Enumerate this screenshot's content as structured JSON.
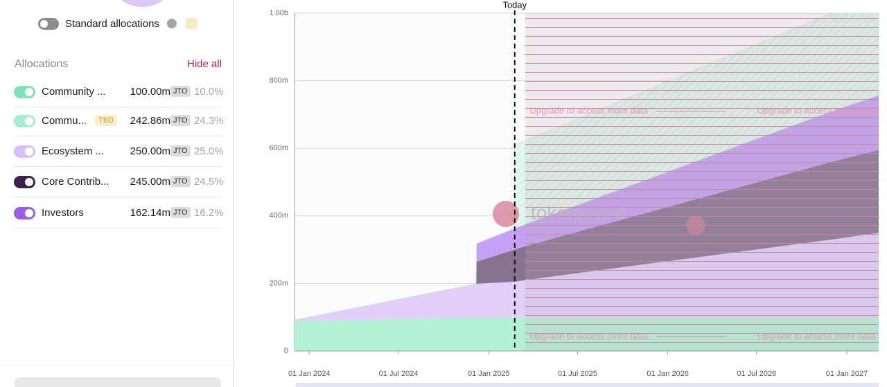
{
  "sidebar": {
    "toggle_label": "Standard allocations",
    "section_title": "Allocations",
    "hide_all": "Hide all",
    "rows": [
      {
        "label": "Community ...",
        "amount": "100.00m",
        "unit": "JTO",
        "share": "10.0%",
        "color": "#7ee2b8"
      },
      {
        "label": "Commu...",
        "tag": "TBD",
        "amount": "242.86m",
        "unit": "JTO",
        "share": "24.3%",
        "color": "#a8ecd0"
      },
      {
        "label": "Ecosystem ...",
        "amount": "250.00m",
        "unit": "JTO",
        "share": "25.0%",
        "color": "#d9bff7"
      },
      {
        "label": "Core Contrib...",
        "amount": "245.00m",
        "unit": "JTO",
        "share": "24.5%",
        "color": "#3b1f4f"
      },
      {
        "label": "Investors",
        "amount": "162.14m",
        "unit": "JTO",
        "share": "16.2%",
        "color": "#9b5de5"
      }
    ]
  },
  "chart_data": {
    "type": "stacked-area",
    "x": [
      "2023-12-02",
      "2024-12-06",
      "2024-12-07",
      "2025-02-22",
      "2025-02-23",
      "2025-03-16",
      "2026-12-01",
      "2027-03-07"
    ],
    "series": [
      {
        "color": "#b4f2d6",
        "values": [
          88,
          100,
          100,
          100,
          100,
          100,
          100,
          100
        ]
      },
      {
        "color": "#e2d0fa",
        "values": [
          4,
          99,
          99,
          105,
          105,
          110,
          230,
          250
        ]
      },
      {
        "color": "#857391",
        "values": [
          0,
          0,
          65,
          95,
          95,
          100,
          230,
          245
        ]
      },
      {
        "color": "#c6a0f5",
        "values": [
          0,
          0,
          54,
          63,
          63,
          65,
          150,
          162
        ]
      },
      {
        "color": "#d3f3e5",
        "values": [
          0,
          0,
          0,
          0,
          247,
          247,
          290,
          243
        ]
      }
    ],
    "xlim": [
      "2023-12-02",
      "2027-03-07"
    ],
    "xticks": [
      {
        "value": "2024-01-01",
        "label": "01 Jan 2024"
      },
      {
        "value": "2024-07-01",
        "label": "01 Jul 2024"
      },
      {
        "value": "2025-01-01",
        "label": "01 Jan 2025"
      },
      {
        "value": "2025-07-01",
        "label": "01 Jul 2025"
      },
      {
        "value": "2026-01-01",
        "label": "01 Jan 2026"
      },
      {
        "value": "2026-07-01",
        "label": "01 Jul 2026"
      },
      {
        "value": "2027-01-01",
        "label": "01 Jan 2027"
      }
    ],
    "ylim": [
      0,
      1000
    ],
    "yticks": [
      0,
      {
        "value": 200,
        "label": "200m"
      },
      {
        "value": 400,
        "label": "400m"
      },
      {
        "value": 600,
        "label": "600m"
      },
      {
        "value": 800,
        "label": "800m"
      },
      {
        "value": 1000,
        "label": "1.00b"
      }
    ],
    "grid": true,
    "today": {
      "label": "Today",
      "x": "2025-02-23"
    },
    "locked_from": "2025-03-16",
    "locked_text": "Upgrade to access more data",
    "watermark": "tokenomist"
  }
}
